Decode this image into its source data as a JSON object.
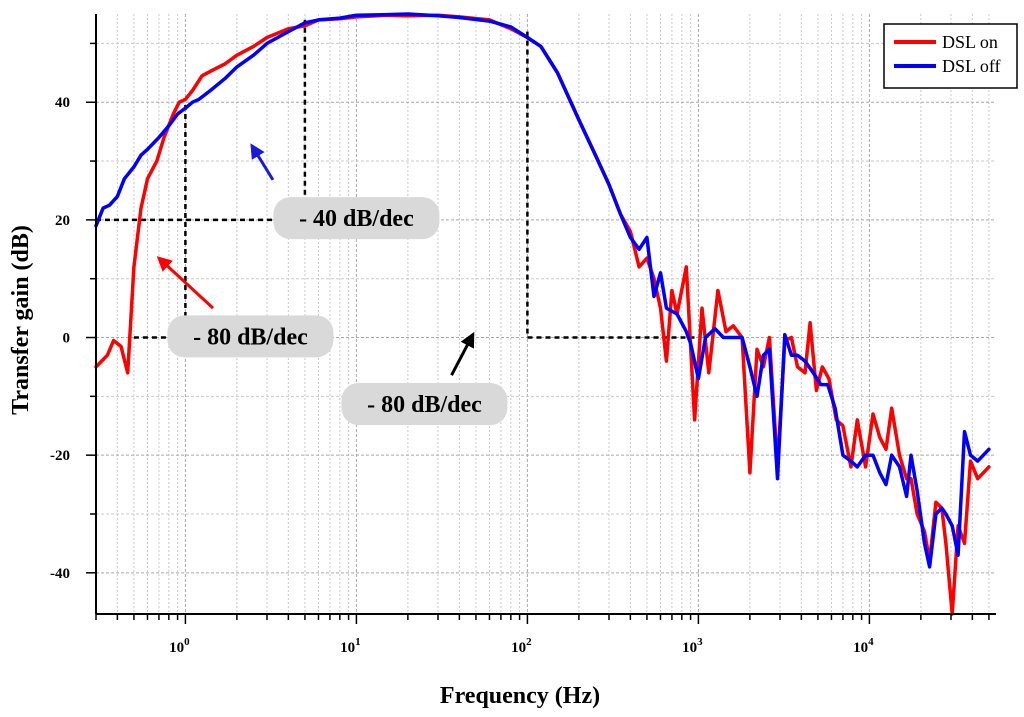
{
  "chart_data": {
    "type": "line",
    "xscale": "log",
    "xlim": [
      0.3,
      55000
    ],
    "ylim": [
      -47,
      55
    ],
    "xlabel": "Frequency (Hz)",
    "ylabel": "Transfer gain (dB)",
    "xticks": [
      {
        "value": 1,
        "base": "10",
        "exp": "0"
      },
      {
        "value": 10,
        "base": "10",
        "exp": "1"
      },
      {
        "value": 100,
        "base": "10",
        "exp": "2"
      },
      {
        "value": 1000,
        "base": "10",
        "exp": "3"
      },
      {
        "value": 10000,
        "base": "10",
        "exp": "4"
      }
    ],
    "yticks": [
      {
        "value": 40,
        "label": "40"
      },
      {
        "value": 20,
        "label": "20"
      },
      {
        "value": 0,
        "label": "0"
      },
      {
        "value": -20,
        "label": "-20"
      },
      {
        "value": -40,
        "label": "-40"
      }
    ],
    "grid": true,
    "legend_position": "top-right",
    "series": [
      {
        "name": "DSL on",
        "color": "#ff0000",
        "points": [
          [
            0.3,
            -5
          ],
          [
            0.35,
            -3
          ],
          [
            0.38,
            -0.5
          ],
          [
            0.42,
            -1.5
          ],
          [
            0.46,
            -6
          ],
          [
            0.5,
            12
          ],
          [
            0.55,
            22
          ],
          [
            0.6,
            27
          ],
          [
            0.68,
            30
          ],
          [
            0.75,
            34
          ],
          [
            0.85,
            38
          ],
          [
            0.92,
            40
          ],
          [
            1.0,
            40.5
          ],
          [
            1.1,
            42
          ],
          [
            1.25,
            44.5
          ],
          [
            1.45,
            45.5
          ],
          [
            1.7,
            46.5
          ],
          [
            2.0,
            48
          ],
          [
            2.5,
            49.5
          ],
          [
            3.0,
            51
          ],
          [
            4.0,
            52.5
          ],
          [
            5.0,
            53
          ],
          [
            6.0,
            54
          ],
          [
            8.0,
            54.2
          ],
          [
            10,
            54.5
          ],
          [
            15,
            54.8
          ],
          [
            20,
            54.7
          ],
          [
            30,
            54.8
          ],
          [
            40,
            54.5
          ],
          [
            60,
            54
          ],
          [
            80,
            52.5
          ],
          [
            100,
            51
          ],
          [
            120,
            49.5
          ],
          [
            150,
            45
          ],
          [
            200,
            37
          ],
          [
            250,
            31
          ],
          [
            300,
            26
          ],
          [
            350,
            21
          ],
          [
            400,
            18
          ],
          [
            450,
            12
          ],
          [
            500,
            13.5
          ],
          [
            550,
            10
          ],
          [
            600,
            5
          ],
          [
            650,
            -4
          ],
          [
            700,
            8
          ],
          [
            750,
            4
          ],
          [
            850,
            12
          ],
          [
            950,
            -14
          ],
          [
            1050,
            5
          ],
          [
            1150,
            -6
          ],
          [
            1300,
            8
          ],
          [
            1450,
            1
          ],
          [
            1600,
            2
          ],
          [
            1800,
            0
          ],
          [
            2000,
            -23
          ],
          [
            2200,
            -2
          ],
          [
            2400,
            -5
          ],
          [
            2600,
            0
          ],
          [
            2900,
            -22
          ],
          [
            3200,
            -0.5
          ],
          [
            3500,
            0
          ],
          [
            3800,
            -5
          ],
          [
            4200,
            -6
          ],
          [
            4500,
            2.5
          ],
          [
            4900,
            -9
          ],
          [
            5300,
            -5
          ],
          [
            5800,
            -7
          ],
          [
            6400,
            -14
          ],
          [
            7000,
            -15
          ],
          [
            7800,
            -22
          ],
          [
            8500,
            -14
          ],
          [
            9500,
            -22
          ],
          [
            10500,
            -13
          ],
          [
            11500,
            -17
          ],
          [
            12500,
            -19
          ],
          [
            13500,
            -12
          ],
          [
            15000,
            -20
          ],
          [
            16500,
            -24
          ],
          [
            17500,
            -24
          ],
          [
            19000,
            -30
          ],
          [
            21000,
            -33
          ],
          [
            22500,
            -38
          ],
          [
            24500,
            -28
          ],
          [
            26500,
            -29
          ],
          [
            28000,
            -35
          ],
          [
            30500,
            -47
          ],
          [
            33000,
            -32
          ],
          [
            36000,
            -35
          ],
          [
            39000,
            -21
          ],
          [
            43000,
            -24
          ],
          [
            50000,
            -22
          ]
        ]
      },
      {
        "name": "DSL off",
        "color": "#0000ff",
        "points": [
          [
            0.3,
            19
          ],
          [
            0.33,
            22
          ],
          [
            0.36,
            22.5
          ],
          [
            0.4,
            24
          ],
          [
            0.44,
            27
          ],
          [
            0.5,
            29
          ],
          [
            0.55,
            31
          ],
          [
            0.6,
            32
          ],
          [
            0.7,
            34
          ],
          [
            0.8,
            36
          ],
          [
            0.9,
            38
          ],
          [
            1.0,
            39
          ],
          [
            1.1,
            40
          ],
          [
            1.2,
            40.5
          ],
          [
            1.4,
            42
          ],
          [
            1.7,
            44
          ],
          [
            2.0,
            46
          ],
          [
            2.5,
            48
          ],
          [
            3.0,
            50
          ],
          [
            4.0,
            52
          ],
          [
            5.0,
            53.5
          ],
          [
            6.0,
            54
          ],
          [
            8.0,
            54.3
          ],
          [
            10,
            54.8
          ],
          [
            15,
            54.9
          ],
          [
            20,
            55
          ],
          [
            30,
            54.7
          ],
          [
            40,
            54.4
          ],
          [
            60,
            53.8
          ],
          [
            80,
            52.8
          ],
          [
            100,
            51
          ],
          [
            120,
            49.5
          ],
          [
            150,
            45
          ],
          [
            200,
            37
          ],
          [
            250,
            31
          ],
          [
            300,
            26
          ],
          [
            350,
            21
          ],
          [
            400,
            17
          ],
          [
            450,
            15
          ],
          [
            500,
            17
          ],
          [
            550,
            7
          ],
          [
            600,
            11
          ],
          [
            650,
            5
          ],
          [
            750,
            4
          ],
          [
            850,
            1
          ],
          [
            900,
            -1
          ],
          [
            1000,
            -7
          ],
          [
            1100,
            0
          ],
          [
            1250,
            1.5
          ],
          [
            1400,
            0
          ],
          [
            1600,
            0
          ],
          [
            1800,
            0
          ],
          [
            2000,
            -5
          ],
          [
            2200,
            -10
          ],
          [
            2400,
            -3
          ],
          [
            2600,
            -2
          ],
          [
            2900,
            -24
          ],
          [
            3200,
            0.5
          ],
          [
            3500,
            -3
          ],
          [
            3800,
            -3
          ],
          [
            4200,
            -4
          ],
          [
            4700,
            -6
          ],
          [
            5200,
            -8
          ],
          [
            5700,
            -8
          ],
          [
            6300,
            -12
          ],
          [
            7000,
            -20
          ],
          [
            7800,
            -21
          ],
          [
            8500,
            -22
          ],
          [
            9500,
            -20
          ],
          [
            10500,
            -20
          ],
          [
            11500,
            -23
          ],
          [
            12500,
            -25
          ],
          [
            13500,
            -20
          ],
          [
            15000,
            -22
          ],
          [
            16500,
            -27
          ],
          [
            17500,
            -20
          ],
          [
            19000,
            -26
          ],
          [
            21000,
            -35
          ],
          [
            22500,
            -39
          ],
          [
            24500,
            -30
          ],
          [
            26500,
            -29
          ],
          [
            28000,
            -30
          ],
          [
            30500,
            -32
          ],
          [
            33000,
            -37
          ],
          [
            36000,
            -16
          ],
          [
            39000,
            -20
          ],
          [
            43000,
            -21
          ],
          [
            50000,
            -19
          ]
        ]
      }
    ],
    "guides": [
      {
        "name": "guide-low-stop",
        "points": [
          [
            0.5,
            0
          ],
          [
            1,
            0
          ],
          [
            1,
            40
          ]
        ]
      },
      {
        "name": "guide-low-20db",
        "points": [
          [
            0.3,
            20
          ],
          [
            5,
            20
          ],
          [
            5,
            54
          ]
        ]
      },
      {
        "name": "guide-high",
        "points": [
          [
            100,
            52
          ],
          [
            100,
            0
          ],
          [
            1000,
            0
          ]
        ]
      }
    ],
    "annotations": [
      {
        "name": "annotation-40db-dec",
        "text": "- 40 dB/dec",
        "at": [
          10,
          20.3
        ],
        "arrow_from": [
          3.25,
          26.8
        ],
        "arrow_to": [
          2.45,
          32.6
        ],
        "color": "#1a1adc"
      },
      {
        "name": "annotation-80db-dec-low",
        "text": "- 80 dB/dec",
        "at": [
          2.4,
          0.2
        ],
        "arrow_from": [
          1.45,
          5.0
        ],
        "arrow_to": [
          0.7,
          13.5
        ],
        "color": "#ff0000"
      },
      {
        "name": "annotation-80db-dec-high",
        "text": "- 80 dB/dec",
        "at": [
          25,
          -11.3
        ],
        "arrow_from": [
          36,
          -6.4
        ],
        "arrow_to": [
          48,
          0.5
        ],
        "color": "#000000"
      }
    ]
  }
}
